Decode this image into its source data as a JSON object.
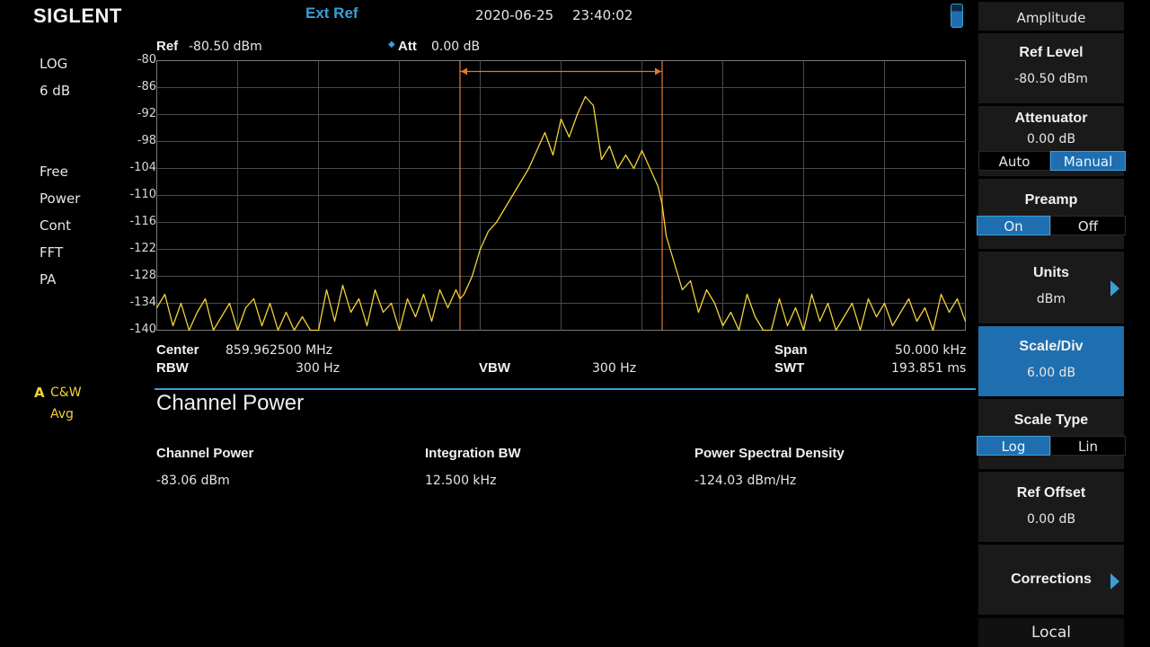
{
  "header": {
    "brand": "SIGLENT",
    "ref_source": "Ext Ref",
    "date": "2020-06-25",
    "time": "23:40:02"
  },
  "left_panel": {
    "scale_mode": "LOG",
    "scale_value": "6 dB",
    "trigger": "Free",
    "detector": "Power",
    "sweep": "Cont",
    "sweep_type": "FFT",
    "preamp_state": "PA",
    "trace_letter": "A",
    "trace_mode": "C&W",
    "trace_type": "Avg"
  },
  "ref_bar": {
    "ref_label": "Ref",
    "ref_value": "-80.50 dBm",
    "att_label": "Att",
    "att_value": "0.00 dB"
  },
  "y_ticks": [
    "-80",
    "-86",
    "-92",
    "-98",
    "-104",
    "-110",
    "-116",
    "-122",
    "-128",
    "-134",
    "-140"
  ],
  "footer": {
    "center_label": "Center",
    "center_value": "859.962500 MHz",
    "rbw_label": "RBW",
    "rbw_value": "300 Hz",
    "vbw_label": "VBW",
    "vbw_value": "300 Hz",
    "span_label": "Span",
    "span_value": "50.000 kHz",
    "swt_label": "SWT",
    "swt_value": "193.851 ms"
  },
  "measurement": {
    "title": "Channel Power",
    "channel_power_label": "Channel Power",
    "channel_power_value": "-83.06 dBm",
    "integration_bw_label": "Integration BW",
    "integration_bw_value": "12.500 kHz",
    "psd_label": "Power Spectral Density",
    "psd_value": "-124.03 dBm/Hz"
  },
  "softkeys": {
    "menu_title": "Amplitude",
    "ref_level": {
      "title": "Ref Level",
      "value": "-80.50 dBm"
    },
    "attenuator": {
      "title": "Attenuator",
      "value": "0.00 dB",
      "auto": "Auto",
      "manual": "Manual",
      "selected": "Manual"
    },
    "preamp": {
      "title": "Preamp",
      "on": "On",
      "off": "Off",
      "selected": "On"
    },
    "units": {
      "title": "Units",
      "value": "dBm"
    },
    "scale_div": {
      "title": "Scale/Div",
      "value": "6.00 dB"
    },
    "scale_type": {
      "title": "Scale Type",
      "log": "Log",
      "lin": "Lin",
      "selected": "Log"
    },
    "ref_offset": {
      "title": "Ref Offset",
      "value": "0.00 dB"
    },
    "corrections": {
      "title": "Corrections"
    },
    "local": "Local"
  },
  "colors": {
    "trace": "#f3d33a",
    "channel_markers": "#e07a2e",
    "accent": "#3a9fd8",
    "grid": "#4a4a4a"
  },
  "chart_data": {
    "type": "line",
    "xlabel": "",
    "ylabel": "",
    "xlim_khz": [
      -25,
      25
    ],
    "ylim": [
      -140,
      -80
    ],
    "grid": true,
    "channel_bw_khz": 12.5,
    "series": [
      {
        "x": [
          -25,
          -24.5,
          -24,
          -23.5,
          -23,
          -22.5,
          -22,
          -21.5,
          -21,
          -20.5,
          -20,
          -19.5,
          -19,
          -18.5,
          -18,
          -17.5,
          -17,
          -16.5,
          -16,
          -15.5,
          -15,
          -14.5,
          -14,
          -13.5,
          -13,
          -12.5,
          -12,
          -11.5,
          -11,
          -10.5,
          -10,
          -9.5,
          -9,
          -8.5,
          -8,
          -7.5,
          -7,
          -6.5,
          -6.25,
          -6,
          -5.5,
          -5,
          -4.5,
          -4,
          -3.5,
          -3,
          -2.5,
          -2,
          -1.5,
          -1,
          -0.5,
          0,
          0.5,
          1,
          1.5,
          2,
          2.5,
          3,
          3.5,
          4,
          4.5,
          5,
          5.5,
          6,
          6.25,
          6.5,
          7,
          7.5,
          8,
          8.5,
          9,
          9.5,
          10,
          10.5,
          11,
          11.5,
          12,
          12.5,
          13,
          13.5,
          14,
          14.5,
          15,
          15.5,
          16,
          16.5,
          17,
          17.5,
          18,
          18.5,
          19,
          19.5,
          20,
          20.5,
          21,
          21.5,
          22,
          22.5,
          23,
          23.5,
          24,
          24.5,
          25
        ],
        "y": [
          -135,
          -132,
          -139,
          -134,
          -140,
          -136,
          -133,
          -140,
          -137,
          -134,
          -140,
          -135,
          -133,
          -139,
          -134,
          -140,
          -136,
          -140,
          -137,
          -140,
          -140,
          -131,
          -138,
          -130,
          -136,
          -133,
          -139,
          -131,
          -136,
          -134,
          -140,
          -133,
          -137,
          -132,
          -138,
          -131,
          -135,
          -131,
          -133,
          -132,
          -128,
          -122,
          -118,
          -116,
          -113,
          -110,
          -107,
          -104,
          -100,
          -96,
          -101,
          -93,
          -97,
          -92,
          -88,
          -90,
          -102,
          -99,
          -104,
          -101,
          -104,
          -100,
          -104,
          -108,
          -112,
          -119,
          -125,
          -131,
          -129,
          -136,
          -131,
          -134,
          -139,
          -136,
          -140,
          -132,
          -137,
          -140,
          -140,
          -133,
          -139,
          -135,
          -140,
          -132,
          -138,
          -134,
          -140,
          -137,
          -134,
          -140,
          -133,
          -137,
          -134,
          -139,
          -136,
          -133,
          -138,
          -135,
          -140,
          -132,
          -136,
          -133,
          -138
        ]
      }
    ]
  }
}
